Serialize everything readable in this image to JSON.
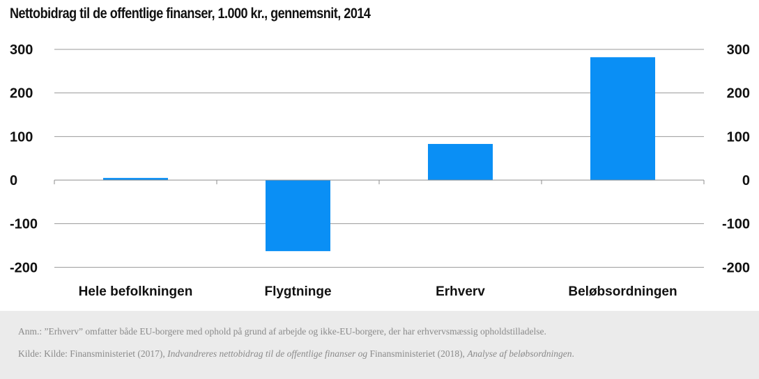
{
  "chart_data": {
    "type": "bar",
    "title": "Nettobidrag til de offentlige finanser, 1.000 kr., gennemsnit, 2014",
    "categories": [
      "Hele befolkningen",
      "Flygtninge",
      "Erhverv",
      "Beløbsordningen"
    ],
    "values": [
      5,
      -163,
      83,
      282
    ],
    "ylim": [
      -200,
      300
    ],
    "yticks": [
      300,
      200,
      100,
      0,
      -100,
      -200
    ],
    "ytick_labels": [
      "300",
      "200",
      "100",
      "0",
      "-100",
      "-200"
    ],
    "xlabel": "",
    "ylabel": "",
    "grid": true,
    "dual_y_axis": true,
    "bar_color": "#0a8ff5"
  },
  "notes": {
    "anm_prefix": "Anm.:",
    "anm_text": "”Erhverv” omfatter både EU-borgere med ophold på grund af arbejde og ikke-EU-borgere, der har erhvervsmæssig opholdstilladelse.",
    "kilde_prefix": "Kilde: Kilde: Finansministeriet (2017),",
    "kilde_title_1": "Indvandreres nettobidrag til de offentlige finanser",
    "kilde_mid": "og",
    "kilde_source_2": "Finansministeriet (2018),",
    "kilde_title_2": "Analyse af beløbsordningen",
    "kilde_end": "."
  }
}
